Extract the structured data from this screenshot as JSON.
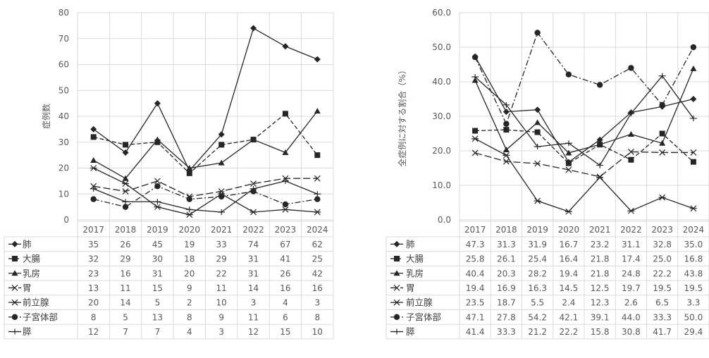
{
  "chart_data": [
    {
      "type": "line",
      "ylabel": "症例数",
      "ylim": [
        0,
        80
      ],
      "yticks": [
        0,
        10,
        20,
        30,
        40,
        50,
        60,
        70,
        80
      ],
      "ytick_labels": [
        "0",
        "10",
        "20",
        "30",
        "40",
        "50",
        "60",
        "70",
        "80"
      ],
      "categories": [
        "2017",
        "2018",
        "2019",
        "2020",
        "2021",
        "2022",
        "2023",
        "2024"
      ],
      "grid": true,
      "legend": "data-table",
      "series": [
        {
          "name": "肺",
          "marker": "diamond",
          "dash": "solid",
          "values": [
            35,
            26,
            45,
            19,
            33,
            74,
            67,
            62
          ],
          "labels": [
            "35",
            "26",
            "45",
            "19",
            "33",
            "74",
            "67",
            "62"
          ]
        },
        {
          "name": "大腸",
          "marker": "square",
          "dash": "dashed",
          "values": [
            32,
            29,
            30,
            18,
            29,
            31,
            41,
            25
          ],
          "labels": [
            "32",
            "29",
            "30",
            "18",
            "29",
            "31",
            "41",
            "25"
          ]
        },
        {
          "name": "乳房",
          "marker": "triangle",
          "dash": "solid",
          "values": [
            23,
            16,
            31,
            20,
            22,
            31,
            26,
            42
          ],
          "labels": [
            "23",
            "16",
            "31",
            "20",
            "22",
            "31",
            "26",
            "42"
          ]
        },
        {
          "name": "胃",
          "marker": "x",
          "dash": "longdash",
          "values": [
            13,
            11,
            15,
            9,
            11,
            14,
            16,
            16
          ],
          "labels": [
            "13",
            "11",
            "15",
            "9",
            "11",
            "14",
            "16",
            "16"
          ]
        },
        {
          "name": "前立腺",
          "marker": "star",
          "dash": "solid",
          "values": [
            20,
            14,
            5,
            2,
            10,
            3,
            4,
            3
          ],
          "labels": [
            "20",
            "14",
            "5",
            "2",
            "10",
            "3",
            "4",
            "3"
          ]
        },
        {
          "name": "子宮体部",
          "marker": "circle",
          "dash": "dashdot",
          "values": [
            8,
            5,
            13,
            8,
            9,
            11,
            6,
            8
          ],
          "labels": [
            "8",
            "5",
            "13",
            "8",
            "9",
            "11",
            "6",
            "8"
          ]
        },
        {
          "name": "膵",
          "marker": "plus",
          "dash": "solid",
          "values": [
            12,
            7,
            7,
            4,
            3,
            12,
            15,
            10
          ],
          "labels": [
            "12",
            "7",
            "7",
            "4",
            "3",
            "12",
            "15",
            "10"
          ]
        }
      ]
    },
    {
      "type": "line",
      "ylabel": "全症例に対する割合（%）",
      "ylim": [
        0,
        60
      ],
      "yticks": [
        0,
        10,
        20,
        30,
        40,
        50,
        60
      ],
      "ytick_labels": [
        "0.0",
        "10.0",
        "20.0",
        "30.0",
        "40.0",
        "50.0",
        "60.0"
      ],
      "categories": [
        "2017",
        "2018",
        "2019",
        "2020",
        "2021",
        "2022",
        "2023",
        "2024"
      ],
      "grid": true,
      "legend": "data-table",
      "series": [
        {
          "name": "肺",
          "marker": "diamond",
          "dash": "solid",
          "values": [
            47.3,
            31.3,
            31.9,
            16.7,
            23.2,
            31.1,
            32.8,
            35.0
          ],
          "labels": [
            "47.3",
            "31.3",
            "31.9",
            "16.7",
            "23.2",
            "31.1",
            "32.8",
            "35.0"
          ]
        },
        {
          "name": "大腸",
          "marker": "square",
          "dash": "dashed",
          "values": [
            25.8,
            26.1,
            25.4,
            16.4,
            21.8,
            17.4,
            25.0,
            16.8
          ],
          "labels": [
            "25.8",
            "26.1",
            "25.4",
            "16.4",
            "21.8",
            "17.4",
            "25.0",
            "16.8"
          ]
        },
        {
          "name": "乳房",
          "marker": "triangle",
          "dash": "solid",
          "values": [
            40.4,
            20.3,
            28.2,
            19.4,
            21.8,
            24.8,
            22.2,
            43.8
          ],
          "labels": [
            "40.4",
            "20.3",
            "28.2",
            "19.4",
            "21.8",
            "24.8",
            "22.2",
            "43.8"
          ]
        },
        {
          "name": "胃",
          "marker": "x",
          "dash": "longdash",
          "values": [
            19.4,
            16.9,
            16.3,
            14.5,
            12.5,
            19.7,
            19.5,
            19.5
          ],
          "labels": [
            "19.4",
            "16.9",
            "16.3",
            "14.5",
            "12.5",
            "19.7",
            "19.5",
            "19.5"
          ]
        },
        {
          "name": "前立腺",
          "marker": "star",
          "dash": "solid",
          "values": [
            23.5,
            18.7,
            5.5,
            2.4,
            12.3,
            2.6,
            6.5,
            3.3
          ],
          "labels": [
            "23.5",
            "18.7",
            "5.5",
            "2.4",
            "12.3",
            "2.6",
            "6.5",
            "3.3"
          ]
        },
        {
          "name": "子宮体部",
          "marker": "circle",
          "dash": "dashdot",
          "values": [
            47.1,
            27.8,
            54.2,
            42.1,
            39.1,
            44.0,
            33.3,
            50.0
          ],
          "labels": [
            "47.1",
            "27.8",
            "54.2",
            "42.1",
            "39.1",
            "44.0",
            "33.3",
            "50.0"
          ]
        },
        {
          "name": "膵",
          "marker": "plus",
          "dash": "solid",
          "values": [
            41.4,
            33.3,
            21.2,
            22.2,
            15.8,
            30.8,
            41.7,
            29.4
          ],
          "labels": [
            "41.4",
            "33.3",
            "21.2",
            "22.2",
            "15.8",
            "30.8",
            "41.7",
            "29.4"
          ]
        }
      ]
    }
  ]
}
